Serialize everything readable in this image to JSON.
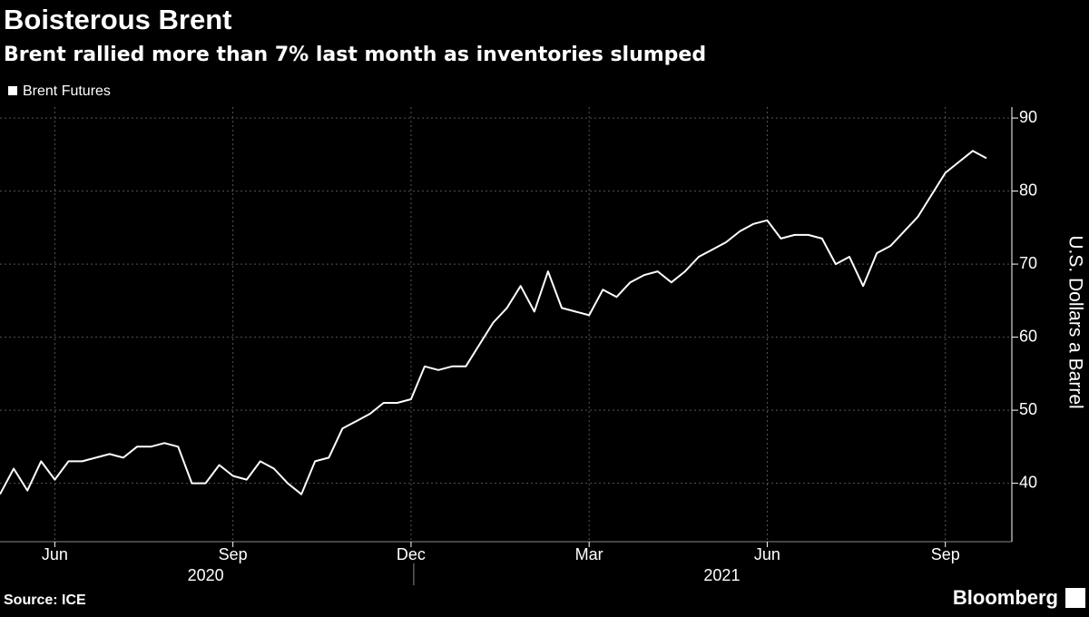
{
  "chart_data": {
    "type": "line",
    "title": "Boisterous Brent",
    "subtitle": "Brent rallied more than 7% last month as inventories slumped",
    "y_label": "U.S. Dollars a Barrel",
    "source": "Source: ICE",
    "brand": "Bloomberg",
    "year_labels": [
      "2020",
      "2021"
    ],
    "categories": [
      null,
      null,
      null,
      null,
      "Jun",
      null,
      null,
      null,
      null,
      null,
      null,
      null,
      null,
      null,
      null,
      null,
      null,
      "Sep",
      null,
      null,
      null,
      null,
      null,
      null,
      null,
      null,
      null,
      null,
      null,
      null,
      "Dec",
      null,
      null,
      null,
      null,
      null,
      null,
      null,
      null,
      null,
      null,
      null,
      null,
      "Mar",
      null,
      null,
      null,
      null,
      null,
      null,
      null,
      null,
      null,
      null,
      null,
      null,
      "Jun",
      null,
      null,
      null,
      null,
      null,
      null,
      null,
      null,
      null,
      null,
      null,
      null,
      "Sep",
      null,
      null,
      null
    ],
    "series": [
      {
        "name": "Brent Futures",
        "color": "#ffffff",
        "values": [
          38.5,
          42,
          39,
          43,
          40.5,
          43,
          43,
          43.5,
          44,
          43.5,
          45,
          45,
          45.5,
          45,
          40,
          40,
          42.5,
          41,
          40.5,
          43,
          42,
          40,
          38.5,
          43,
          43.5,
          47.5,
          48.5,
          49.5,
          51,
          51,
          51.5,
          56,
          55.5,
          56,
          56,
          59,
          62,
          64,
          67,
          63.5,
          69,
          64,
          63.5,
          63,
          66.5,
          65.5,
          67.5,
          68.5,
          69,
          67.5,
          69,
          71,
          72,
          73,
          74.5,
          75.5,
          76,
          73.5,
          74,
          74,
          73.5,
          70,
          71,
          67,
          71.5,
          72.5,
          74.5,
          76.5,
          79.5,
          82.5,
          84,
          85.5,
          84.5
        ]
      }
    ],
    "ylim": [
      32,
      91.5
    ],
    "yticks": [
      40,
      50,
      60,
      70,
      80,
      90
    ],
    "grid": true,
    "legend": "top-left"
  }
}
